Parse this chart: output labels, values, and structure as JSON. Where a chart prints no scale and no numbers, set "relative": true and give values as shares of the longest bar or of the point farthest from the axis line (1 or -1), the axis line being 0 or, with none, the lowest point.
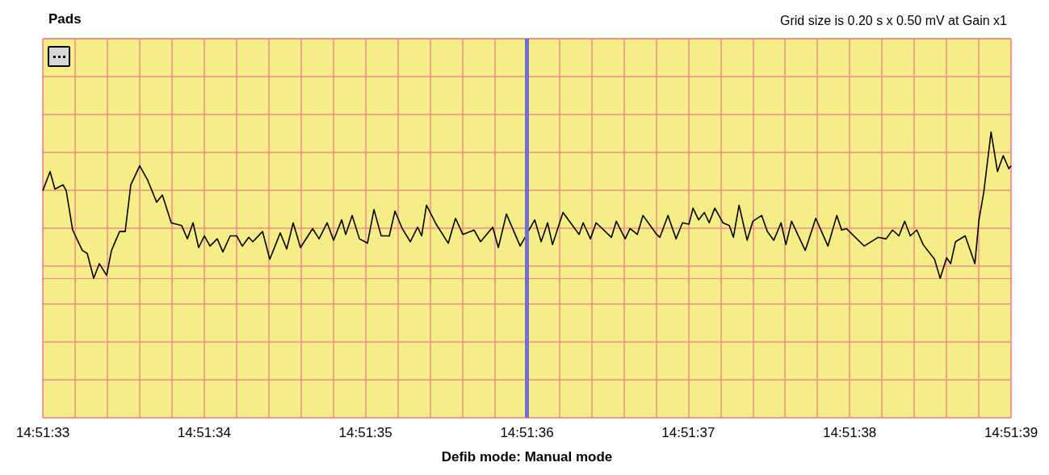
{
  "chart_data": {
    "type": "line",
    "title": "Pads",
    "subtitle": "Grid size is 0.20 s x 0.50 mV at Gain x1",
    "xlabel": "Defib mode: Manual mode",
    "relative": true,
    "grid": true,
    "marker": "none",
    "color": "#000000",
    "x": [
      14.8591667,
      14.8591792,
      14.8591876,
      14.8592015,
      14.859207,
      14.8592181,
      14.8592348,
      14.8592432,
      14.8592543,
      14.859264,
      14.8592765,
      14.8592849,
      14.8592988,
      14.8593085,
      14.8593182,
      14.8593335,
      14.8593474,
      14.8593627,
      14.8593725,
      14.8593878,
      14.8594058,
      14.8594156,
      14.8594253,
      14.859435,
      14.8594448,
      14.8594545,
      14.859467,
      14.8594767,
      14.8594892,
      14.8595004,
      14.8595101,
      14.8595212,
      14.8595282,
      14.8595449,
      14.8595574,
      14.8595754,
      14.8595866,
      14.8595977,
      14.8596102,
      14.8596311,
      14.8596422,
      14.8596561,
      14.8596672,
      14.8596811,
      14.8596881,
      14.8596992,
      14.8597117,
      14.8597256,
      14.8597367,
      14.8597492,
      14.8597631,
      14.8597729,
      14.8597854,
      14.8597993,
      14.8598118,
      14.8598188,
      14.8598271,
      14.8598438,
      14.8598646,
      14.8598771,
      14.8598897,
      14.8599091,
      14.8599202,
      14.8599411,
      14.8599508,
      14.8599647,
      14.8599884,
      14.8600134,
      14.8600245,
      14.8600356,
      14.860044,
      14.8600621,
      14.8600899,
      14.8600968,
      14.8601093,
      14.8601191,
      14.8601455,
      14.8601538,
      14.8601691,
      14.8601775,
      14.86019,
      14.8601997,
      14.8602233,
      14.8602289,
      14.8602428,
      14.8602567,
      14.8602678,
      14.8602789,
      14.8602859,
      14.8602956,
      14.8603054,
      14.8603137,
      14.8603234,
      14.8603373,
      14.8603485,
      14.8603554,
      14.8603651,
      14.860379,
      14.8603888,
      14.8604041,
      14.8604138,
      14.8604249,
      14.8604374,
      14.8604458,
      14.8604555,
      14.8604791,
      14.8604972,
      14.8605181,
      14.8605334,
      14.8605417,
      14.86055,
      14.8605806,
      14.8606043,
      14.8606182,
      14.8606293,
      14.8606404,
      14.8606502,
      14.8606599,
      14.860671,
      14.8606821,
      14.8607016,
      14.8607113,
      14.8607224,
      14.8607294,
      14.8607377,
      14.8607544,
      14.8607711,
      14.8607781,
      14.8607864,
      14.8607989,
      14.86081,
      14.8608198,
      14.8608295,
      14.8608333
    ],
    "values": [
      0.6,
      0.73,
      0.61,
      0.64,
      0.6,
      0.33,
      0.19,
      0.17,
      0,
      0.1,
      0.02,
      0.19,
      0.32,
      0.32,
      0.64,
      0.77,
      0.67,
      0.52,
      0.57,
      0.38,
      0.36,
      0.27,
      0.38,
      0.21,
      0.29,
      0.22,
      0.27,
      0.18,
      0.29,
      0.29,
      0.22,
      0.28,
      0.25,
      0.32,
      0.13,
      0.31,
      0.2,
      0.38,
      0.21,
      0.34,
      0.27,
      0.38,
      0.26,
      0.4,
      0.3,
      0.43,
      0.27,
      0.24,
      0.47,
      0.29,
      0.29,
      0.46,
      0.34,
      0.25,
      0.35,
      0.29,
      0.5,
      0.37,
      0.24,
      0.41,
      0.3,
      0.33,
      0.25,
      0.35,
      0.21,
      0.44,
      0.22,
      0.4,
      0.25,
      0.38,
      0.23,
      0.45,
      0.3,
      0.38,
      0.27,
      0.38,
      0.28,
      0.39,
      0.27,
      0.34,
      0.3,
      0.43,
      0.3,
      0.28,
      0.43,
      0.27,
      0.38,
      0.37,
      0.48,
      0.4,
      0.45,
      0.38,
      0.48,
      0.38,
      0.36,
      0.28,
      0.5,
      0.26,
      0.39,
      0.43,
      0.32,
      0.26,
      0.38,
      0.23,
      0.39,
      0.19,
      0.41,
      0.22,
      0.43,
      0.33,
      0.34,
      0.22,
      0.28,
      0.27,
      0.33,
      0.29,
      0.39,
      0.29,
      0.33,
      0.23,
      0.13,
      0,
      0.14,
      0.1,
      0.25,
      0.29,
      0.1,
      0.4,
      0.59,
      1,
      0.73,
      0.84,
      0.75,
      0.77
    ],
    "xlim": [
      14.8591667,
      14.8608333
    ],
    "xticks": [
      {
        "value": 14.8591667,
        "label": "14:51:33"
      },
      {
        "value": 14.8592222,
        "label": null
      },
      {
        "value": 14.8592778,
        "label": null
      },
      {
        "value": 14.8593333,
        "label": null
      },
      {
        "value": 14.8593889,
        "label": null
      },
      {
        "value": 14.8594444,
        "label": "14:51:34"
      },
      {
        "value": 14.8595,
        "label": null
      },
      {
        "value": 14.8595556,
        "label": null
      },
      {
        "value": 14.8596111,
        "label": null
      },
      {
        "value": 14.8596667,
        "label": null
      },
      {
        "value": 14.8597222,
        "label": "14:51:35"
      },
      {
        "value": 14.8597778,
        "label": null
      },
      {
        "value": 14.8598333,
        "label": null
      },
      {
        "value": 14.8598889,
        "label": null
      },
      {
        "value": 14.8599444,
        "label": null
      },
      {
        "value": 14.86,
        "label": "14:51:36"
      },
      {
        "value": 14.8600556,
        "label": null
      },
      {
        "value": 14.8601111,
        "label": null
      },
      {
        "value": 14.8601667,
        "label": null
      },
      {
        "value": 14.8602222,
        "label": null
      },
      {
        "value": 14.8602778,
        "label": "14:51:37"
      },
      {
        "value": 14.8603333,
        "label": null
      },
      {
        "value": 14.8603889,
        "label": null
      },
      {
        "value": 14.8604444,
        "label": null
      },
      {
        "value": 14.8605,
        "label": null
      },
      {
        "value": 14.8605556,
        "label": "14:51:38"
      },
      {
        "value": 14.8606111,
        "label": null
      },
      {
        "value": 14.8606667,
        "label": null
      },
      {
        "value": 14.8607222,
        "label": null
      },
      {
        "value": 14.8607778,
        "label": null
      },
      {
        "value": 14.8608333,
        "label": "14:51:39"
      }
    ],
    "ref_lines": [
      {
        "axis": "x",
        "value": 14.86,
        "color": "#7070d0"
      }
    ]
  }
}
